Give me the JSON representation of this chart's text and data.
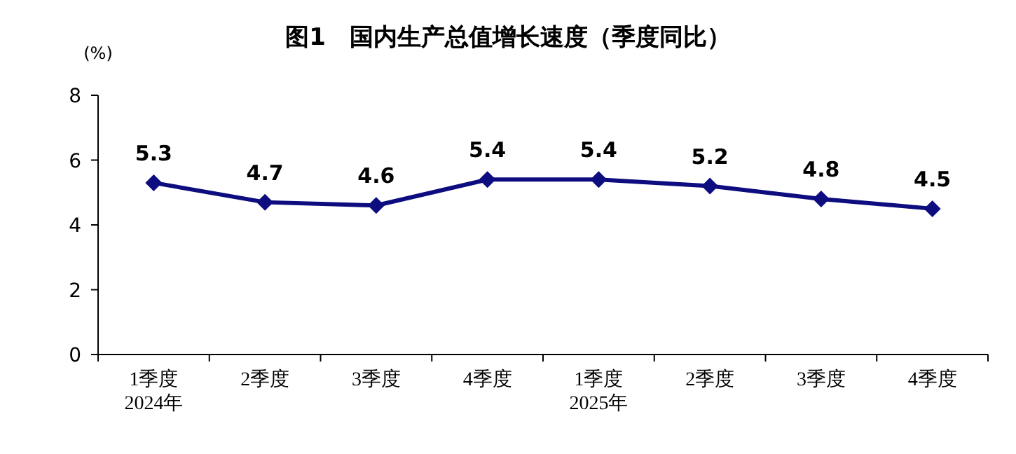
{
  "chart_data": {
    "type": "line",
    "title": "图1　国内生产总值增长速度（季度同比）",
    "ylabel": "(%)",
    "categories": [
      "1季度\n2024年",
      "2季度",
      "3季度",
      "4季度",
      "1季度\n2025年",
      "2季度",
      "3季度",
      "4季度"
    ],
    "series": [
      {
        "color": "#0d0d80",
        "values": [
          5.3,
          4.7,
          4.6,
          5.4,
          5.4,
          5.2,
          4.8,
          4.5
        ]
      }
    ],
    "ylim": [
      0,
      8
    ],
    "yticks": [
      0,
      2,
      4,
      6,
      8
    ],
    "grid": false,
    "marker": "diamond",
    "line_style": "solid",
    "data_labels": true
  }
}
